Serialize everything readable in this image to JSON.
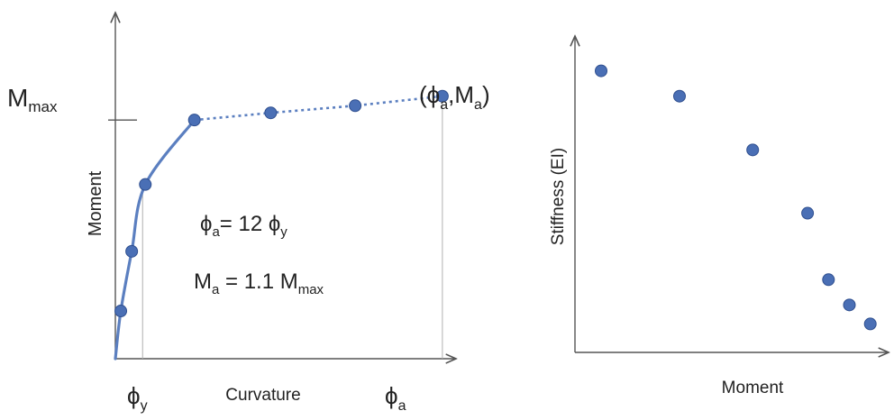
{
  "chart_data": [
    {
      "type": "line",
      "xlabel": "Curvature",
      "ylabel": "Moment",
      "x_tick_labels": [
        {
          "base": "ϕ",
          "sub": "y"
        },
        {
          "base": "ϕ",
          "sub": "a"
        }
      ],
      "y_tick_labels": [
        {
          "base": "M",
          "sub": "max"
        }
      ],
      "xlim": [
        0,
        12.5
      ],
      "ylim": [
        0,
        1.45
      ],
      "x_ticks": [
        1,
        12
      ],
      "y_ticks": [
        1.0
      ],
      "series": [
        {
          "style": "solid",
          "points": [
            [
              0,
              0
            ],
            [
              0.2,
              0.2
            ],
            [
              0.6,
              0.45
            ],
            [
              1.1,
              0.73
            ],
            [
              2.9,
              1.0
            ]
          ]
        },
        {
          "style": "dotted",
          "points": [
            [
              2.9,
              1.0
            ],
            [
              5.7,
              1.03
            ],
            [
              8.8,
              1.06
            ],
            [
              12,
              1.1
            ]
          ]
        }
      ],
      "point_label": {
        "base_open": "(ϕ",
        "sub1": "a",
        "mid": ",M",
        "sub2": "a",
        "close": ")"
      },
      "annotations": [
        {
          "parts": [
            "ϕ",
            "a",
            "= 12 ϕ",
            "y"
          ]
        },
        {
          "parts": [
            "M",
            "a",
            " = 1.1 M",
            "max"
          ]
        }
      ],
      "colors": {
        "marker": "#4a6fb5",
        "marker_edge": "#2f4f8f",
        "line": "#5b7fc0"
      }
    },
    {
      "type": "scatter",
      "xlabel": "Moment",
      "ylabel": "Stiffness (EI)",
      "xlim": [
        0,
        1.2
      ],
      "ylim": [
        0,
        1.0
      ],
      "points": [
        [
          0.1,
          0.89
        ],
        [
          0.4,
          0.81
        ],
        [
          0.68,
          0.64
        ],
        [
          0.89,
          0.44
        ],
        [
          0.97,
          0.23
        ],
        [
          1.05,
          0.15
        ],
        [
          1.13,
          0.09
        ]
      ],
      "colors": {
        "marker": "#4a6fb5",
        "marker_edge": "#2f4f8f"
      }
    }
  ]
}
